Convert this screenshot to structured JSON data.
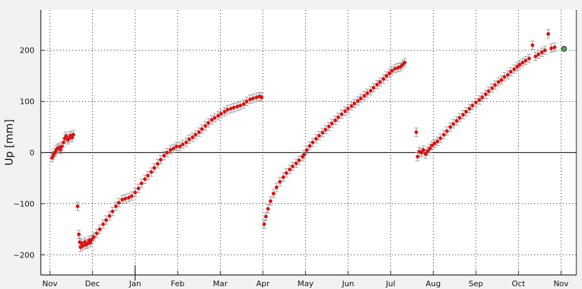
{
  "chart_data": {
    "type": "scatter",
    "title": "",
    "xlabel": "",
    "ylabel": "Up [mm]",
    "ylim": [
      -240,
      280
    ],
    "yticks": [
      -200,
      -100,
      0,
      100,
      200
    ],
    "ytick_labels": [
      "−200",
      "−100",
      "0",
      "100",
      "200"
    ],
    "xtick_labels": [
      "Nov",
      "Dec",
      "Jan",
      "Feb",
      "Mar",
      "Apr",
      "May",
      "Jun",
      "Jul",
      "Aug",
      "Sep",
      "Oct",
      "Nov"
    ],
    "xtick_month_index": [
      0,
      1,
      2,
      3,
      4,
      5,
      6,
      7,
      8,
      9,
      10,
      11,
      12
    ],
    "year_divider_month_index": 2,
    "grid": true,
    "zero_line": true,
    "marker_color": "#e01010",
    "errorbar_color": "#8c8c8c",
    "latest_marker_color": "#3fbf3f",
    "points": [
      [
        0.05,
        -10
      ],
      [
        0.08,
        -5
      ],
      [
        0.12,
        0
      ],
      [
        0.15,
        5
      ],
      [
        0.18,
        8
      ],
      [
        0.22,
        10
      ],
      [
        0.25,
        6
      ],
      [
        0.28,
        12
      ],
      [
        0.32,
        20
      ],
      [
        0.35,
        28
      ],
      [
        0.38,
        32
      ],
      [
        0.42,
        25
      ],
      [
        0.45,
        28
      ],
      [
        0.48,
        33
      ],
      [
        0.52,
        30
      ],
      [
        0.55,
        35
      ],
      [
        0.65,
        -105
      ],
      [
        0.68,
        -160
      ],
      [
        0.7,
        -175
      ],
      [
        0.72,
        -185
      ],
      [
        0.75,
        -178
      ],
      [
        0.78,
        -182
      ],
      [
        0.82,
        -175
      ],
      [
        0.85,
        -180
      ],
      [
        0.88,
        -178
      ],
      [
        0.92,
        -172
      ],
      [
        0.95,
        -176
      ],
      [
        0.98,
        -170
      ],
      [
        1.03,
        -165
      ],
      [
        1.1,
        -158
      ],
      [
        1.17,
        -150
      ],
      [
        1.25,
        -140
      ],
      [
        1.32,
        -132
      ],
      [
        1.4,
        -124
      ],
      [
        1.47,
        -115
      ],
      [
        1.55,
        -105
      ],
      [
        1.62,
        -98
      ],
      [
        1.7,
        -92
      ],
      [
        1.77,
        -90
      ],
      [
        1.85,
        -88
      ],
      [
        1.92,
        -85
      ],
      [
        2.0,
        -78
      ],
      [
        2.08,
        -70
      ],
      [
        2.15,
        -60
      ],
      [
        2.23,
        -52
      ],
      [
        2.3,
        -45
      ],
      [
        2.38,
        -38
      ],
      [
        2.45,
        -30
      ],
      [
        2.53,
        -22
      ],
      [
        2.6,
        -14
      ],
      [
        2.68,
        -6
      ],
      [
        2.75,
        0
      ],
      [
        2.83,
        5
      ],
      [
        2.9,
        8
      ],
      [
        2.97,
        12
      ],
      [
        3.05,
        12
      ],
      [
        3.12,
        16
      ],
      [
        3.2,
        20
      ],
      [
        3.27,
        26
      ],
      [
        3.35,
        30
      ],
      [
        3.42,
        35
      ],
      [
        3.5,
        40
      ],
      [
        3.57,
        46
      ],
      [
        3.65,
        52
      ],
      [
        3.72,
        58
      ],
      [
        3.8,
        64
      ],
      [
        3.87,
        68
      ],
      [
        3.95,
        72
      ],
      [
        4.02,
        76
      ],
      [
        4.1,
        80
      ],
      [
        4.17,
        84
      ],
      [
        4.25,
        86
      ],
      [
        4.32,
        88
      ],
      [
        4.4,
        90
      ],
      [
        4.47,
        92
      ],
      [
        4.55,
        95
      ],
      [
        4.62,
        100
      ],
      [
        4.7,
        104
      ],
      [
        4.77,
        106
      ],
      [
        4.85,
        108
      ],
      [
        4.92,
        110
      ],
      [
        4.97,
        108
      ],
      [
        5.03,
        -140
      ],
      [
        5.07,
        -125
      ],
      [
        5.12,
        -110
      ],
      [
        5.18,
        -95
      ],
      [
        5.25,
        -80
      ],
      [
        5.32,
        -68
      ],
      [
        5.4,
        -57
      ],
      [
        5.48,
        -48
      ],
      [
        5.55,
        -40
      ],
      [
        5.63,
        -33
      ],
      [
        5.7,
        -27
      ],
      [
        5.78,
        -21
      ],
      [
        5.85,
        -15
      ],
      [
        5.93,
        -8
      ],
      [
        5.97,
        -4
      ],
      [
        6.03,
        5
      ],
      [
        6.1,
        13
      ],
      [
        6.17,
        20
      ],
      [
        6.25,
        27
      ],
      [
        6.32,
        33
      ],
      [
        6.4,
        39
      ],
      [
        6.47,
        45
      ],
      [
        6.55,
        51
      ],
      [
        6.62,
        57
      ],
      [
        6.7,
        63
      ],
      [
        6.77,
        69
      ],
      [
        6.85,
        75
      ],
      [
        6.93,
        81
      ],
      [
        7.0,
        86
      ],
      [
        7.08,
        91
      ],
      [
        7.15,
        96
      ],
      [
        7.23,
        101
      ],
      [
        7.3,
        106
      ],
      [
        7.38,
        111
      ],
      [
        7.45,
        116
      ],
      [
        7.53,
        121
      ],
      [
        7.6,
        127
      ],
      [
        7.68,
        133
      ],
      [
        7.75,
        138
      ],
      [
        7.83,
        144
      ],
      [
        7.9,
        150
      ],
      [
        7.97,
        155
      ],
      [
        8.03,
        160
      ],
      [
        8.1,
        164
      ],
      [
        8.17,
        166
      ],
      [
        8.23,
        168
      ],
      [
        8.28,
        172
      ],
      [
        8.33,
        176
      ],
      [
        8.6,
        40
      ],
      [
        8.63,
        -8
      ],
      [
        8.67,
        2
      ],
      [
        8.72,
        0
      ],
      [
        8.77,
        5
      ],
      [
        8.82,
        -3
      ],
      [
        8.87,
        3
      ],
      [
        8.92,
        8
      ],
      [
        8.97,
        14
      ],
      [
        9.03,
        18
      ],
      [
        9.1,
        22
      ],
      [
        9.17,
        28
      ],
      [
        9.25,
        35
      ],
      [
        9.32,
        42
      ],
      [
        9.4,
        50
      ],
      [
        9.47,
        56
      ],
      [
        9.55,
        62
      ],
      [
        9.62,
        68
      ],
      [
        9.7,
        74
      ],
      [
        9.77,
        80
      ],
      [
        9.85,
        86
      ],
      [
        9.92,
        92
      ],
      [
        10.0,
        98
      ],
      [
        10.08,
        103
      ],
      [
        10.15,
        108
      ],
      [
        10.23,
        114
      ],
      [
        10.3,
        120
      ],
      [
        10.38,
        126
      ],
      [
        10.45,
        132
      ],
      [
        10.53,
        138
      ],
      [
        10.6,
        142
      ],
      [
        10.67,
        148
      ],
      [
        10.75,
        152
      ],
      [
        10.82,
        158
      ],
      [
        10.9,
        163
      ],
      [
        10.97,
        168
      ],
      [
        11.03,
        172
      ],
      [
        11.1,
        176
      ],
      [
        11.17,
        180
      ],
      [
        11.25,
        184
      ],
      [
        11.33,
        210
      ],
      [
        11.4,
        188
      ],
      [
        11.47,
        192
      ],
      [
        11.55,
        196
      ],
      [
        11.62,
        200
      ],
      [
        11.7,
        232
      ],
      [
        11.77,
        204
      ],
      [
        11.85,
        206
      ]
    ],
    "latest_point": [
      12.07,
      203
    ]
  }
}
